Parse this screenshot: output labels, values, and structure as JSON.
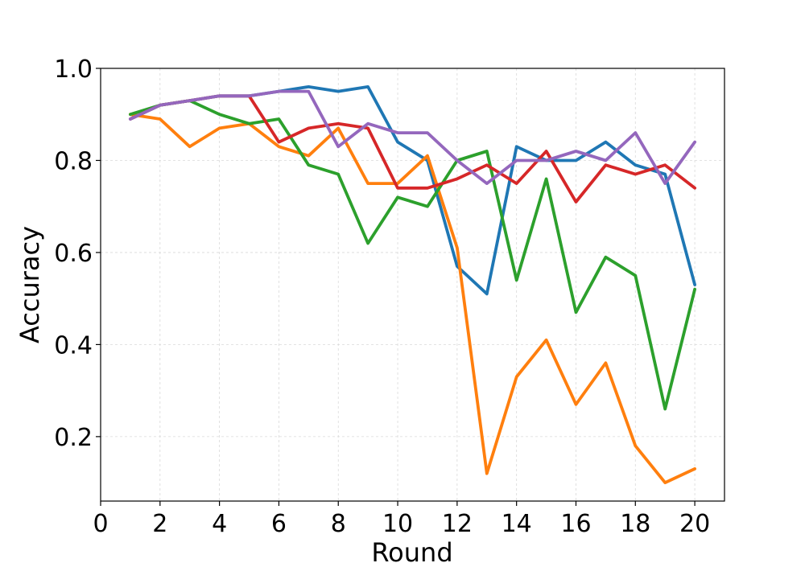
{
  "chart_data": {
    "type": "line",
    "title": "",
    "xlabel": "Round",
    "ylabel": "Accuracy",
    "x": [
      1,
      2,
      3,
      4,
      5,
      6,
      7,
      8,
      9,
      10,
      11,
      12,
      13,
      14,
      15,
      16,
      17,
      18,
      19,
      20
    ],
    "xlim": [
      0,
      21
    ],
    "ylim": [
      0.06,
      1.0
    ],
    "x_ticks": [
      0,
      2,
      4,
      6,
      8,
      10,
      12,
      14,
      16,
      18,
      20
    ],
    "y_ticks": [
      0.2,
      0.4,
      0.6,
      0.8,
      1.0
    ],
    "x_tick_labels": [
      "0",
      "2",
      "4",
      "6",
      "8",
      "10",
      "12",
      "14",
      "16",
      "18",
      "20"
    ],
    "y_tick_labels": [
      "0.2",
      "0.4",
      "0.6",
      "0.8",
      "1.0"
    ],
    "grid": true,
    "legend": null,
    "series": [
      {
        "color": "#1f77b4",
        "values": [
          0.89,
          0.92,
          0.93,
          0.94,
          0.94,
          0.95,
          0.96,
          0.95,
          0.96,
          0.84,
          0.8,
          0.57,
          0.51,
          0.83,
          0.8,
          0.8,
          0.84,
          0.79,
          0.77,
          0.53
        ]
      },
      {
        "color": "#ff7f0e",
        "values": [
          0.9,
          0.89,
          0.83,
          0.87,
          0.88,
          0.83,
          0.81,
          0.87,
          0.75,
          0.75,
          0.81,
          0.61,
          0.12,
          0.33,
          0.41,
          0.27,
          0.36,
          0.18,
          0.1,
          0.13
        ]
      },
      {
        "color": "#2ca02c",
        "values": [
          0.9,
          0.92,
          0.93,
          0.9,
          0.88,
          0.89,
          0.79,
          0.77,
          0.62,
          0.72,
          0.7,
          0.8,
          0.82,
          0.54,
          0.76,
          0.47,
          0.59,
          0.55,
          0.26,
          0.52
        ]
      },
      {
        "color": "#d62728",
        "values": [
          0.89,
          0.92,
          0.93,
          0.94,
          0.94,
          0.84,
          0.87,
          0.88,
          0.87,
          0.74,
          0.74,
          0.76,
          0.79,
          0.75,
          0.82,
          0.71,
          0.79,
          0.77,
          0.79,
          0.74
        ]
      },
      {
        "color": "#9467bd",
        "values": [
          0.89,
          0.92,
          0.93,
          0.94,
          0.94,
          0.95,
          0.95,
          0.83,
          0.88,
          0.86,
          0.86,
          0.8,
          0.75,
          0.8,
          0.8,
          0.82,
          0.8,
          0.86,
          0.75,
          0.84
        ]
      }
    ]
  }
}
